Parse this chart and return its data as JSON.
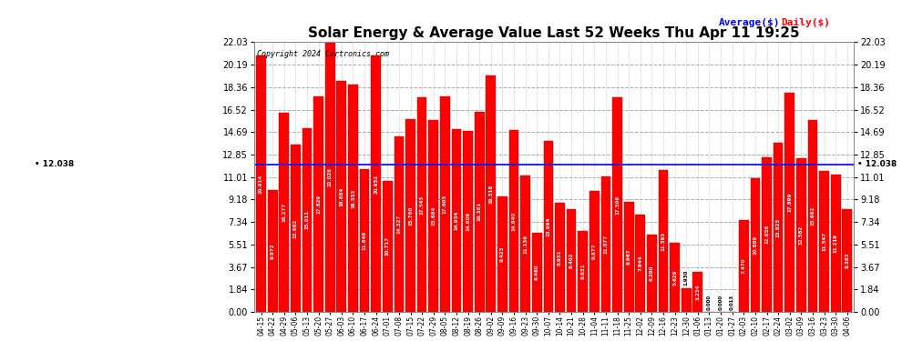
{
  "title": "Solar Energy & Average Value Last 52 Weeks Thu Apr 11 19:25",
  "copyright": "Copyright 2024 Cartronics.com",
  "average_label": "Average($)",
  "daily_label": "Daily($)",
  "average_value": 12.038,
  "ylim_max": 22.03,
  "yticks": [
    0.0,
    1.84,
    3.67,
    5.51,
    7.34,
    9.18,
    11.01,
    12.85,
    14.69,
    16.52,
    18.36,
    20.19,
    22.03
  ],
  "bar_color": "#ff0000",
  "bar_edge_color": "#cc0000",
  "avg_line_color": "#0000ff",
  "background_color": "#ffffff",
  "grid_color": "#aaaaaa",
  "categories": [
    "04-15",
    "04-22",
    "04-29",
    "05-06",
    "05-13",
    "05-20",
    "05-27",
    "06-03",
    "06-10",
    "06-17",
    "06-24",
    "07-01",
    "07-08",
    "07-15",
    "07-22",
    "07-29",
    "08-05",
    "08-12",
    "08-19",
    "08-26",
    "09-02",
    "09-09",
    "09-16",
    "09-23",
    "09-30",
    "10-07",
    "10-14",
    "10-21",
    "10-28",
    "11-04",
    "11-11",
    "11-18",
    "11-25",
    "12-02",
    "12-09",
    "12-16",
    "12-23",
    "12-30",
    "01-06",
    "01-13",
    "01-20",
    "01-27",
    "02-03",
    "02-10",
    "02-17",
    "02-24",
    "03-02",
    "03-09",
    "03-16",
    "03-23",
    "03-30",
    "04-06"
  ],
  "bar_values": [
    20.914,
    9.972,
    16.277,
    13.662,
    15.011,
    17.629,
    22.028,
    18.884,
    18.553,
    11.646,
    20.952,
    10.717,
    14.327,
    15.76,
    17.543,
    15.684,
    17.605,
    14.934,
    14.809,
    16.381,
    19.318,
    9.423,
    14.84,
    11.136,
    6.46,
    13.964,
    8.931,
    8.402,
    6.631,
    9.877,
    11.077,
    17.506,
    8.967,
    7.944,
    6.29,
    11.593,
    5.629,
    1.93,
    3.234,
    0.0,
    0.0,
    0.013,
    7.47,
    10.889,
    12.656,
    13.825,
    17.899,
    12.582,
    15.662,
    11.547,
    11.219,
    8.383
  ],
  "bar_text": [
    "20.914",
    "9.972",
    "16.277",
    "13.662",
    "15.011",
    "17.629",
    "22.028",
    "18.884",
    "18.553",
    "11.646",
    "20.952",
    "10.717",
    "14.327",
    "15.760",
    "17.543",
    "15.684",
    "17.605",
    "14.934",
    "14.809",
    "16.381",
    "19.318",
    "9.423",
    "14.840",
    "11.136",
    "6.460",
    "13.964",
    "8.931",
    "8.402",
    "6.631",
    "9.877",
    "11.077",
    "17.506",
    "8.967",
    "7.944",
    "6.290",
    "11.593",
    "5.629",
    "1.930",
    "3.234",
    "0.000",
    "0.000",
    "0.013",
    "7.470",
    "10.889",
    "12.656",
    "13.825",
    "17.899",
    "12.582",
    "15.662",
    "11.547",
    "11.219",
    "8.383"
  ]
}
